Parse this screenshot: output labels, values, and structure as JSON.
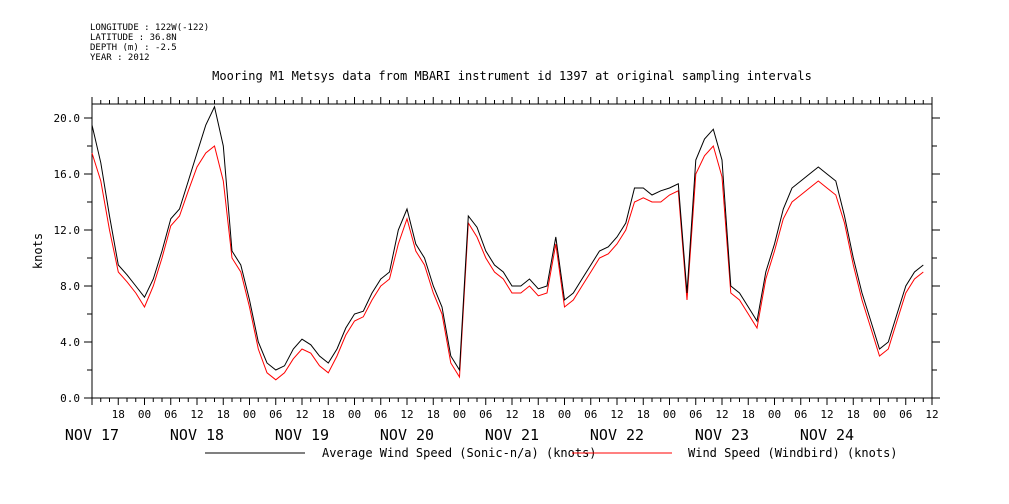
{
  "header": {
    "longitude": "LONGITUDE : 122W(-122)",
    "latitude": "LATITUDE : 36.8N",
    "depth": "DEPTH (m) : -2.5",
    "year": "YEAR : 2012"
  },
  "chart_data": {
    "type": "line",
    "title": "Mooring M1 Metsys data from MBARI instrument id 1397 at original sampling intervals",
    "ylabel": "knots",
    "xlabel": "",
    "ylim": [
      0,
      21
    ],
    "y_ticks": [
      "0.0",
      "4.0",
      "8.0",
      "12.0",
      "16.0",
      "20.0"
    ],
    "y_tick_values": [
      0,
      4,
      8,
      12,
      16,
      20
    ],
    "xlim_hours": [
      12,
      204
    ],
    "x_hour_ticks": [
      {
        "h": 18,
        "label": "18"
      },
      {
        "h": 24,
        "label": "00"
      },
      {
        "h": 30,
        "label": "06"
      },
      {
        "h": 36,
        "label": "12"
      },
      {
        "h": 42,
        "label": "18"
      },
      {
        "h": 48,
        "label": "00"
      },
      {
        "h": 54,
        "label": "06"
      },
      {
        "h": 60,
        "label": "12"
      },
      {
        "h": 66,
        "label": "18"
      },
      {
        "h": 72,
        "label": "00"
      },
      {
        "h": 78,
        "label": "06"
      },
      {
        "h": 84,
        "label": "12"
      },
      {
        "h": 90,
        "label": "18"
      },
      {
        "h": 96,
        "label": "00"
      },
      {
        "h": 102,
        "label": "06"
      },
      {
        "h": 108,
        "label": "12"
      },
      {
        "h": 114,
        "label": "18"
      },
      {
        "h": 120,
        "label": "00"
      },
      {
        "h": 126,
        "label": "06"
      },
      {
        "h": 132,
        "label": "12"
      },
      {
        "h": 138,
        "label": "18"
      },
      {
        "h": 144,
        "label": "00"
      },
      {
        "h": 150,
        "label": "06"
      },
      {
        "h": 156,
        "label": "12"
      },
      {
        "h": 162,
        "label": "18"
      },
      {
        "h": 168,
        "label": "00"
      },
      {
        "h": 174,
        "label": "06"
      },
      {
        "h": 180,
        "label": "12"
      },
      {
        "h": 186,
        "label": "18"
      },
      {
        "h": 192,
        "label": "00"
      },
      {
        "h": 198,
        "label": "06"
      },
      {
        "h": 204,
        "label": "12"
      }
    ],
    "day_labels": [
      {
        "h": 12,
        "label": "NOV 17"
      },
      {
        "h": 36,
        "label": "NOV 18"
      },
      {
        "h": 60,
        "label": "NOV 19"
      },
      {
        "h": 84,
        "label": "NOV 20"
      },
      {
        "h": 108,
        "label": "NOV 21"
      },
      {
        "h": 132,
        "label": "NOV 22"
      },
      {
        "h": 156,
        "label": "NOV 23"
      },
      {
        "h": 180,
        "label": "NOV 24"
      }
    ],
    "x_hours": [
      12,
      14,
      16,
      18,
      20,
      22,
      24,
      26,
      28,
      30,
      32,
      34,
      36,
      38,
      40,
      42,
      44,
      46,
      48,
      50,
      52,
      54,
      56,
      58,
      60,
      62,
      64,
      66,
      68,
      70,
      72,
      74,
      76,
      78,
      80,
      82,
      84,
      86,
      88,
      90,
      92,
      94,
      96,
      98,
      100,
      102,
      104,
      106,
      108,
      110,
      112,
      114,
      116,
      118,
      120,
      122,
      124,
      126,
      128,
      130,
      132,
      134,
      136,
      138,
      140,
      142,
      144,
      146,
      148,
      150,
      152,
      154,
      156,
      158,
      160,
      162,
      164,
      166,
      168,
      170,
      172,
      174,
      176,
      178,
      180,
      182,
      184,
      186,
      188,
      190,
      192,
      194,
      196,
      198,
      200,
      202,
      204
    ],
    "series": [
      {
        "name": "Average Wind Speed (Sonic-n/a) (knots)",
        "color": "#000000",
        "values": [
          19.5,
          16.8,
          13.0,
          9.5,
          8.8,
          8.0,
          7.2,
          8.5,
          10.5,
          12.8,
          13.5,
          15.5,
          17.5,
          19.5,
          20.8,
          18.0,
          10.5,
          9.5,
          7.0,
          4.0,
          2.5,
          2.0,
          2.3,
          3.5,
          4.2,
          3.8,
          3.0,
          2.5,
          3.5,
          5.0,
          6.0,
          6.2,
          7.5,
          8.5,
          9.0,
          12.0,
          13.5,
          11.0,
          10.0,
          8.0,
          6.5,
          3.0,
          2.0,
          13.0,
          12.2,
          10.5,
          9.5,
          9.0,
          8.0,
          8.0,
          8.5,
          7.8,
          8.0,
          11.5,
          7.0,
          7.5,
          8.5,
          9.5,
          10.5,
          10.8,
          11.5,
          12.5,
          15.0,
          15.0,
          14.5,
          14.8,
          15.0,
          15.3,
          7.5,
          17.0,
          18.5,
          19.2,
          17.0,
          8.0,
          7.5,
          6.5,
          5.5,
          9.0,
          11.0,
          13.5,
          15.0,
          15.5,
          16.0,
          16.5,
          16.0,
          15.5,
          13.0,
          10.0,
          7.5,
          5.5,
          3.5,
          4.0,
          6.0,
          8.0,
          9.0,
          9.5
        ],
        "values_note": ""
      },
      {
        "name": "Wind Speed (Windbird) (knots)",
        "color": "#ff0000",
        "values": [
          17.5,
          15.5,
          12.0,
          9.0,
          8.3,
          7.5,
          6.5,
          8.0,
          10.0,
          12.3,
          13.0,
          14.8,
          16.5,
          17.5,
          18.0,
          15.5,
          10.0,
          9.0,
          6.5,
          3.5,
          1.8,
          1.3,
          1.8,
          2.8,
          3.5,
          3.2,
          2.3,
          1.8,
          3.0,
          4.5,
          5.5,
          5.8,
          7.0,
          8.0,
          8.5,
          11.0,
          12.8,
          10.5,
          9.5,
          7.5,
          6.0,
          2.5,
          1.5,
          12.5,
          11.5,
          10.0,
          9.0,
          8.5,
          7.5,
          7.5,
          8.0,
          7.3,
          7.5,
          11.0,
          6.5,
          7.0,
          8.0,
          9.0,
          10.0,
          10.3,
          11.0,
          12.0,
          14.0,
          14.3,
          14.0,
          14.0,
          14.5,
          14.8,
          7.0,
          16.0,
          17.3,
          18.0,
          15.8,
          7.5,
          7.0,
          6.0,
          5.0,
          8.5,
          10.5,
          12.8,
          14.0,
          14.5,
          15.0,
          15.5,
          15.0,
          14.5,
          12.5,
          9.5,
          7.0,
          5.0,
          3.0,
          3.5,
          5.5,
          7.5,
          8.5,
          9.0
        ]
      }
    ],
    "legend_position": "bottom-center"
  }
}
